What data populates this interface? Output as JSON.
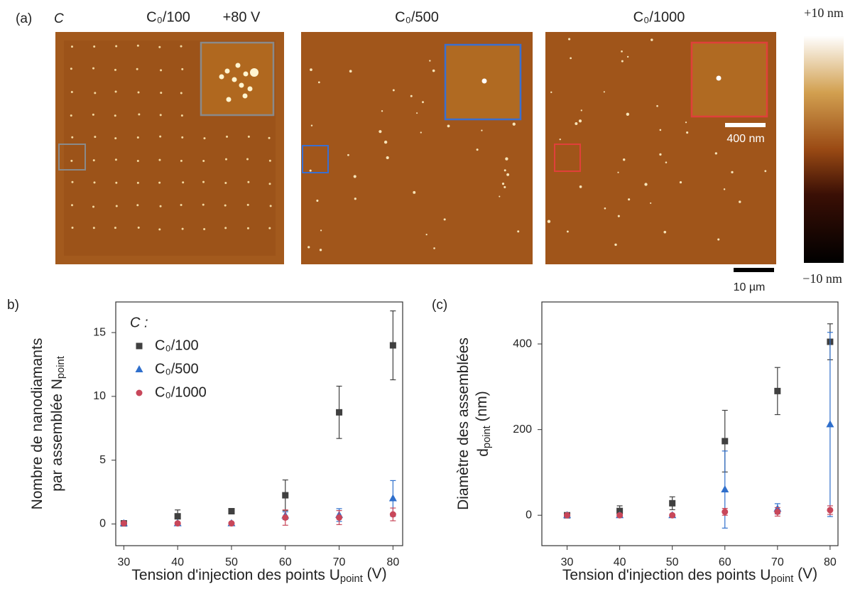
{
  "figure": {
    "panel_label": "(a)",
    "concentration_label": "C",
    "panels": [
      {
        "label": "C₀/100",
        "voltage": "+80 V"
      },
      {
        "label": "C₀/500"
      },
      {
        "label": "C₀/1000"
      }
    ],
    "colorbar": {
      "max": "+10 nm",
      "min": "−10 nm"
    },
    "scale_bars": {
      "inset": "400 nm",
      "image": "10 µm"
    }
  },
  "chart_data": [
    {
      "type": "scatter",
      "panel_label": "b)",
      "ylabel": [
        {
          "text": "Nombre de nanodiamants"
        },
        {
          "text": "par assemblée N",
          "sub": "point"
        }
      ],
      "xlabel": {
        "text": "Tension d'injection des points U",
        "sub": "point",
        "after": " (V)"
      },
      "x": [
        30,
        40,
        50,
        60,
        70,
        80
      ],
      "xlim": [
        28.5,
        81.8
      ],
      "xticks": [
        30,
        40,
        50,
        60,
        70,
        80
      ],
      "ylim": [
        -1.7,
        17.4
      ],
      "yticks": [
        0,
        5,
        10,
        15
      ],
      "legend_title": "C :",
      "series": [
        {
          "name": "C₀/100",
          "color": "#404040",
          "marker": "square",
          "values": [
            0.05,
            0.6,
            1.0,
            2.25,
            8.75,
            14.0
          ],
          "errors": [
            0.05,
            0.5,
            0.1,
            1.2,
            2.05,
            2.7
          ]
        },
        {
          "name": "C₀/500",
          "color": "#2f6fcc",
          "marker": "triangle",
          "values": [
            0.05,
            0.05,
            0.05,
            0.65,
            0.7,
            2.0
          ],
          "errors": [
            0.05,
            0.05,
            0.05,
            0.3,
            0.5,
            1.4
          ]
        },
        {
          "name": "C₀/1000",
          "color": "#c8475a",
          "marker": "circle",
          "values": [
            0.05,
            0.05,
            0.05,
            0.5,
            0.5,
            0.75
          ],
          "errors": [
            0.05,
            0.05,
            0.05,
            0.6,
            0.55,
            0.5
          ]
        }
      ]
    },
    {
      "type": "scatter",
      "panel_label": "(c)",
      "ylabel": [
        {
          "text": "Diamètre des assemblées"
        },
        {
          "text": "d",
          "sub": "point",
          "after": " (nm)"
        }
      ],
      "xlabel": {
        "text": "Tension d'injection des points U",
        "sub": "point",
        "after": " (V)"
      },
      "x": [
        30,
        40,
        50,
        60,
        70,
        80
      ],
      "xlim": [
        25.2,
        81.5
      ],
      "xticks": [
        30,
        40,
        50,
        60,
        70,
        80
      ],
      "ylim": [
        -71,
        498
      ],
      "yticks": [
        0,
        200,
        400
      ],
      "series": [
        {
          "color": "#404040",
          "marker": "square",
          "values": [
            0,
            10,
            28,
            173,
            290,
            405
          ],
          "errors": [
            0,
            12,
            15,
            72,
            55,
            42
          ]
        },
        {
          "color": "#2f6fcc",
          "marker": "triangle",
          "values": [
            0,
            0,
            0,
            60,
            15,
            212
          ],
          "errors": [
            0,
            0,
            0,
            90,
            12,
            215
          ]
        },
        {
          "color": "#c8475a",
          "marker": "circle",
          "values": [
            0,
            0,
            0,
            8,
            8,
            12
          ],
          "errors": [
            0,
            0,
            0,
            8,
            10,
            10
          ]
        }
      ]
    }
  ]
}
